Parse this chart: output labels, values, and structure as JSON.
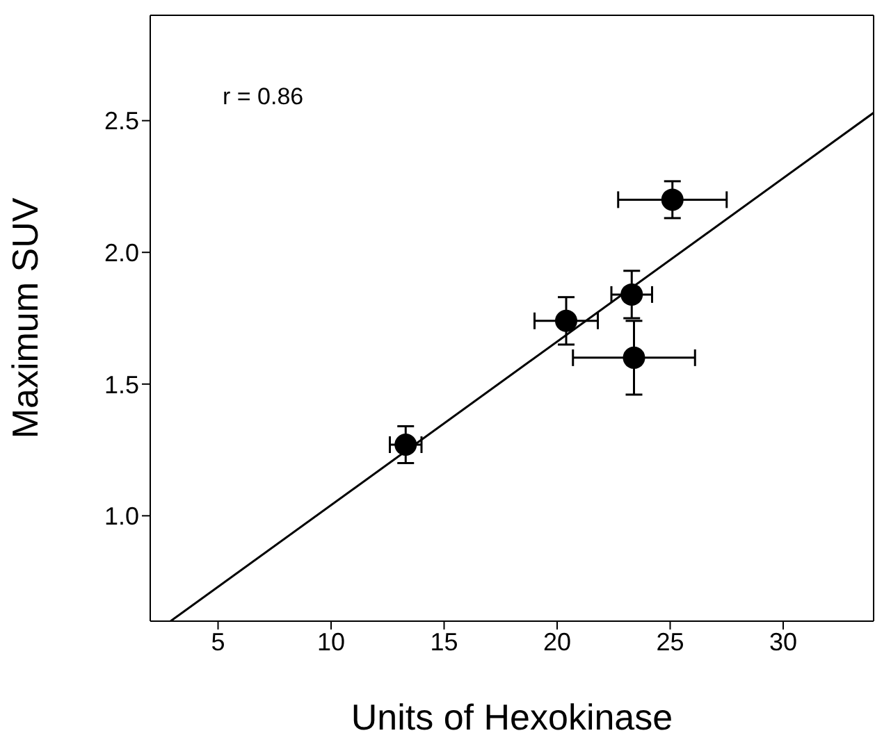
{
  "chart_data": {
    "type": "scatter",
    "xlabel": "Units of Hexokinase",
    "ylabel": "Maximum SUV",
    "annotations": [
      "r = 0.86"
    ],
    "xlim": [
      2,
      34
    ],
    "xticks": [
      5,
      10,
      15,
      20,
      25,
      30
    ],
    "ylim": [
      0.6,
      2.9
    ],
    "yticks": [
      {
        "value": 1,
        "label": "1.0"
      },
      {
        "value": 1.5,
        "label": "1.5"
      },
      {
        "value": 2,
        "label": "2.0"
      },
      {
        "value": 2.5,
        "label": "2.5"
      }
    ],
    "series": [
      {
        "marker": "circle",
        "color": "#000000",
        "x": [
          13.3,
          20.4,
          23.3,
          23.4,
          25.1
        ],
        "values": [
          1.27,
          1.74,
          1.84,
          1.6,
          2.2
        ],
        "errors": [
          0.07,
          0.09,
          0.09,
          0.14,
          0.07
        ],
        "xerrors": [
          0.7,
          1.4,
          0.9,
          2.7,
          2.4
        ]
      },
      {
        "type": "line",
        "color": "#000000",
        "x": [
          2.9,
          34
        ],
        "values": [
          0.6,
          2.53
        ]
      }
    ]
  }
}
